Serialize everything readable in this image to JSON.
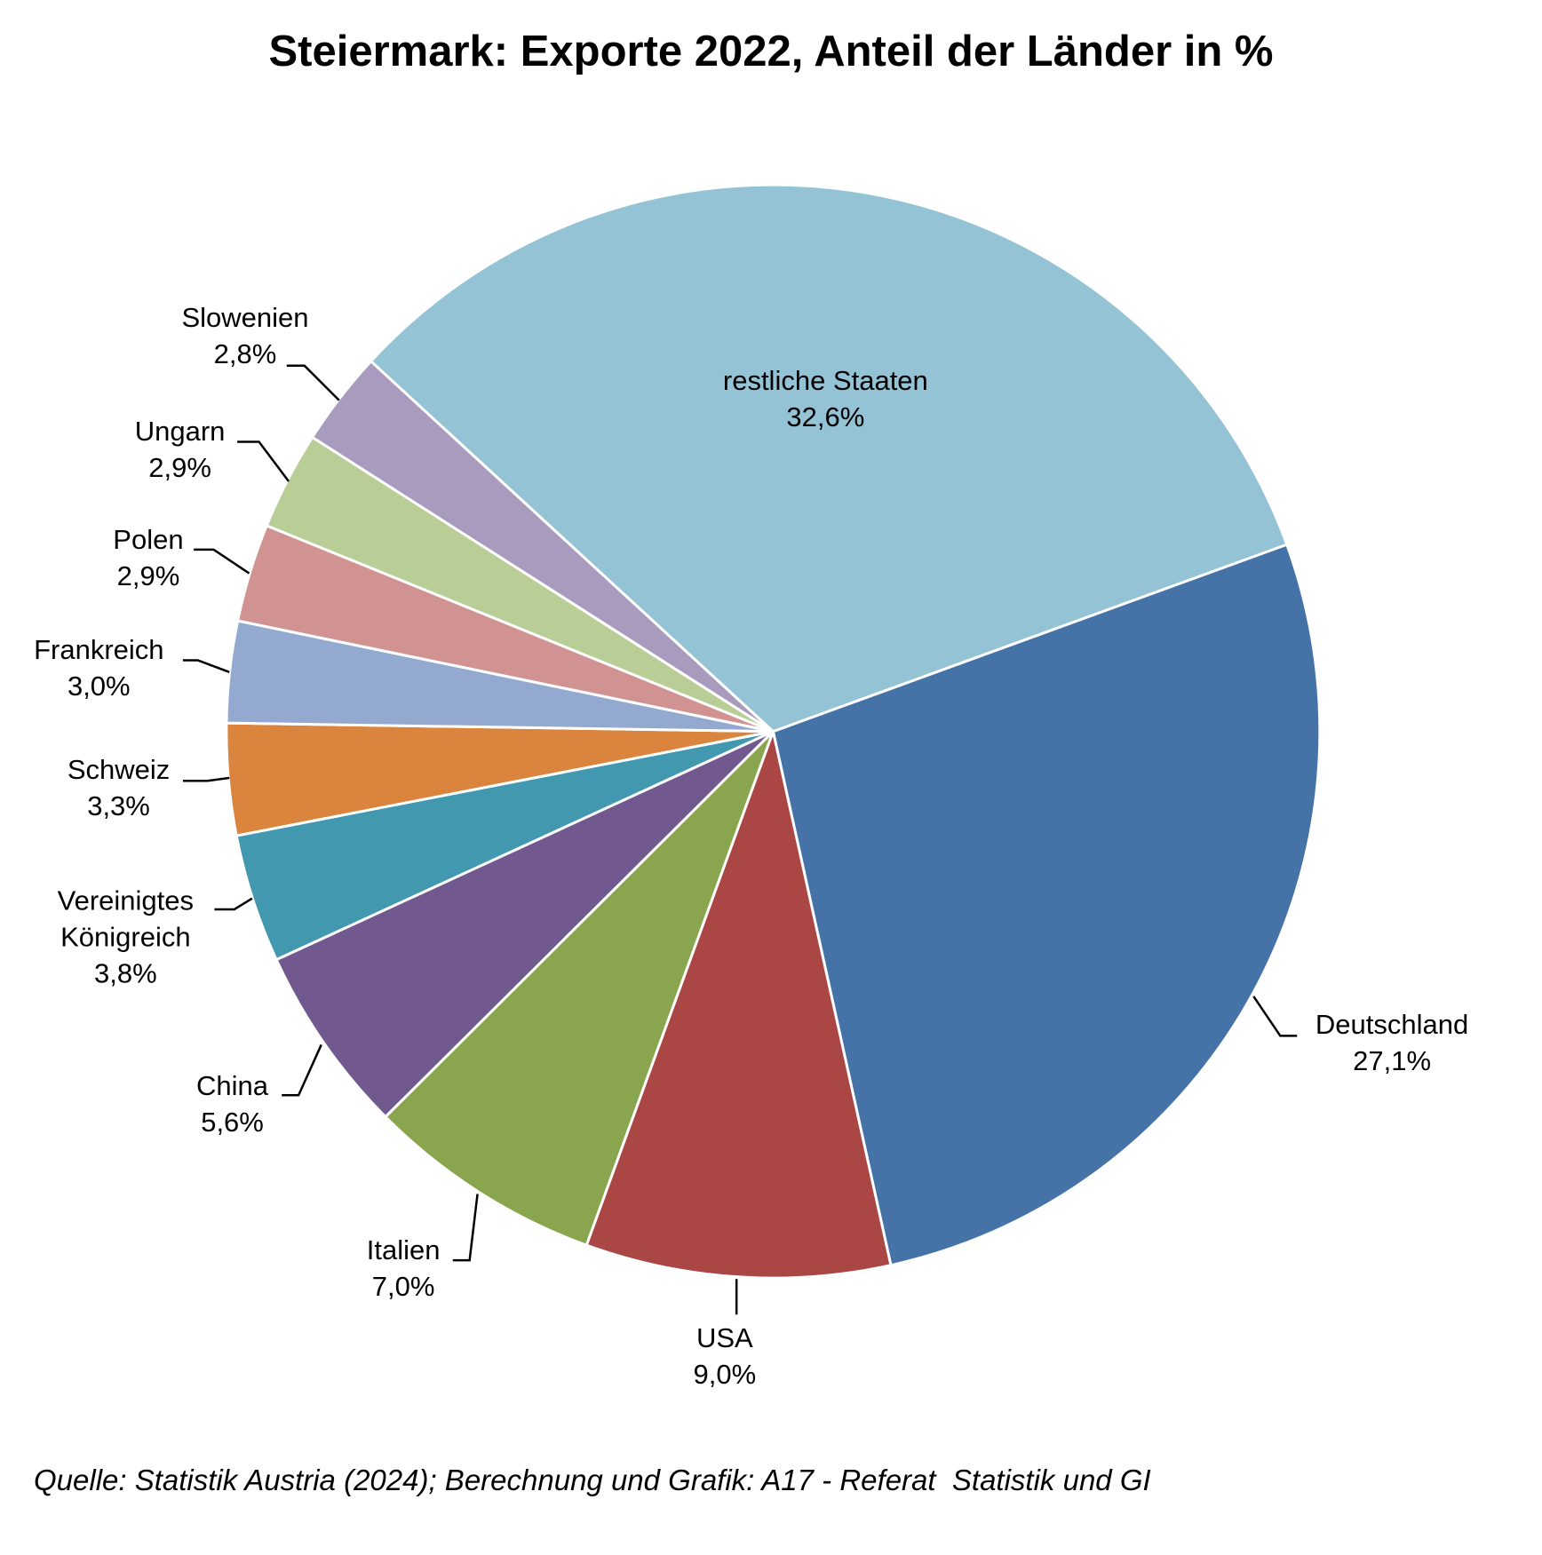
{
  "chart_data": {
    "type": "pie",
    "title": "Steiermark: Exporte 2022, Anteil der Länder in %",
    "categories": [
      "Deutschland",
      "USA",
      "Italien",
      "China",
      "Vereinigtes Königreich",
      "Schweiz",
      "Frankreich",
      "Polen",
      "Ungarn",
      "Slowenien",
      "restliche Staaten"
    ],
    "values": [
      27.1,
      9.0,
      7.0,
      5.6,
      3.8,
      3.3,
      3.0,
      2.9,
      2.9,
      2.8,
      32.6
    ],
    "value_labels": [
      "27,1%",
      "9,0%",
      "7,0%",
      "5,6%",
      "3,8%",
      "3,3%",
      "3,0%",
      "2,9%",
      "2,9%",
      "2,8%",
      "32,6%"
    ],
    "colors": [
      "#4573a7",
      "#aa4644",
      "#89a54e",
      "#71588f",
      "#4198af",
      "#db843d",
      "#93a9cf",
      "#d19392",
      "#b9cd96",
      "#a99bbd",
      "#93c3d5"
    ],
    "source": "Quelle: Statistik Austria (2024); Berechnung und Grafik: A17 - Referat  Statistik und GI"
  }
}
